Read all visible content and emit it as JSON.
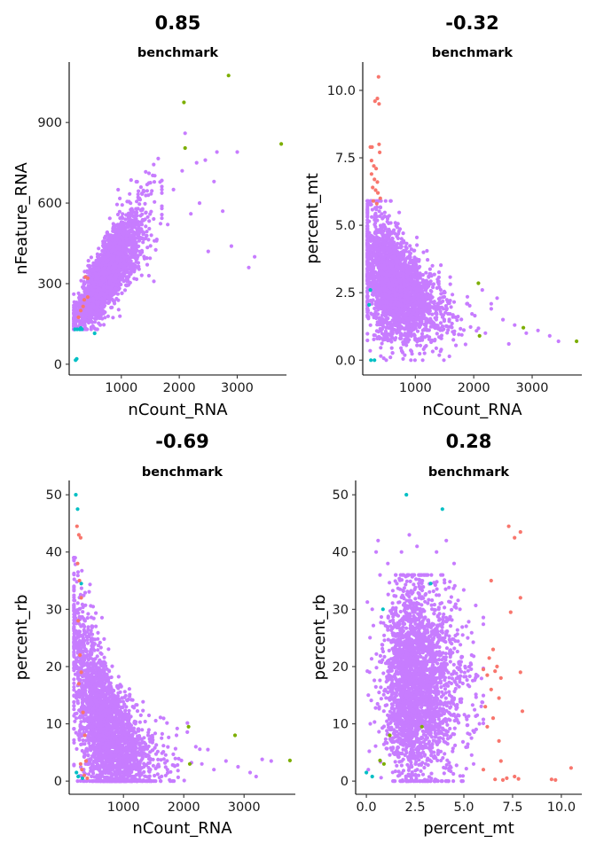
{
  "colors": {
    "main": "#C77CFF",
    "red": "#F8766D",
    "green": "#7CAE00",
    "cyan": "#00BFC4"
  },
  "chart_data": [
    {
      "type": "scatter",
      "title": "0.85",
      "subtitle": "benchmark",
      "xlabel": "nCount_RNA",
      "ylabel": "nFeature_RNA",
      "xlim": [
        100,
        3850
      ],
      "ylim": [
        -40,
        1125
      ],
      "xticks": [
        1000,
        2000,
        3000
      ],
      "yticks": [
        0,
        300,
        600,
        900
      ],
      "series": [
        {
          "color": "#7CAE00",
          "points": [
            [
              2080,
              975
            ],
            [
              2850,
              1075
            ],
            [
              2100,
              805
            ],
            [
              3760,
              820
            ]
          ]
        },
        {
          "color": "#00BFC4",
          "points": [
            [
              210,
              15
            ],
            [
              230,
              20
            ],
            [
              200,
              130
            ],
            [
              240,
              130
            ],
            [
              280,
              130
            ],
            [
              320,
              130
            ],
            [
              540,
              115
            ],
            [
              300,
              135
            ]
          ]
        },
        {
          "color": "#F8766D",
          "points": [
            [
              380,
              325
            ],
            [
              420,
              320
            ],
            [
              360,
              240
            ],
            [
              300,
              200
            ],
            [
              340,
              215
            ],
            [
              260,
              175
            ],
            [
              420,
              250
            ]
          ]
        },
        {
          "color": "#C77CFF",
          "cloud": {
            "model": "linear",
            "n": 2600,
            "xmin": 180,
            "xmax": 1700,
            "xcenter": 650,
            "xspread": 330,
            "intercept": 110,
            "slope": 0.3,
            "yspread": 55,
            "ymin": 130
          },
          "points": [
            [
              2100,
              860
            ],
            [
              2300,
              750
            ],
            [
              2650,
              790
            ],
            [
              3000,
              790
            ],
            [
              2600,
              680
            ],
            [
              2350,
              600
            ],
            [
              2750,
              570
            ],
            [
              2900,
              440
            ],
            [
              3300,
              400
            ],
            [
              3200,
              360
            ],
            [
              2500,
              420
            ],
            [
              2200,
              560
            ],
            [
              2050,
              720
            ],
            [
              1900,
              650
            ],
            [
              1800,
              520
            ],
            [
              2450,
              760
            ]
          ]
        }
      ]
    },
    {
      "type": "scatter",
      "title": "-0.32",
      "subtitle": "benchmark",
      "xlabel": "nCount_RNA",
      "ylabel": "percent_mt",
      "xlim": [
        100,
        3850
      ],
      "ylim": [
        -0.55,
        11.05
      ],
      "xticks": [
        1000,
        2000,
        3000
      ],
      "yticks": [
        0.0,
        2.5,
        5.0,
        7.5,
        10.0
      ],
      "ytick_labels": [
        "0.0",
        "2.5",
        "5.0",
        "7.5",
        "10.0"
      ],
      "series": [
        {
          "color": "#F8766D",
          "points": [
            [
              370,
              10.5
            ],
            [
              310,
              9.6
            ],
            [
              350,
              9.7
            ],
            [
              380,
              9.5
            ],
            [
              230,
              7.9
            ],
            [
              260,
              7.9
            ],
            [
              380,
              8.0
            ],
            [
              390,
              7.7
            ],
            [
              250,
              7.4
            ],
            [
              290,
              7.2
            ],
            [
              330,
              7.1
            ],
            [
              250,
              6.9
            ],
            [
              300,
              6.7
            ],
            [
              350,
              6.6
            ],
            [
              270,
              6.4
            ],
            [
              320,
              6.3
            ],
            [
              360,
              6.2
            ],
            [
              400,
              6.0
            ],
            [
              280,
              5.9
            ],
            [
              340,
              5.8
            ]
          ]
        },
        {
          "color": "#7CAE00",
          "points": [
            [
              2080,
              2.85
            ],
            [
              2850,
              1.2
            ],
            [
              3760,
              0.7
            ],
            [
              2100,
              0.9
            ]
          ]
        },
        {
          "color": "#00BFC4",
          "points": [
            [
              210,
              2.05
            ],
            [
              240,
              0.0
            ],
            [
              300,
              0.0
            ],
            [
              230,
              2.6
            ]
          ]
        },
        {
          "color": "#C77CFF",
          "cloud": {
            "model": "decay",
            "n": 2600,
            "xmin": 180,
            "xmax": 2300,
            "xcenter": 560,
            "xspread": 380,
            "amplitude": 2.6,
            "scale": 900,
            "floor": 1.2,
            "yspread": 0.85,
            "ymin": 0.0,
            "ymax": 5.9
          },
          "points": [
            [
              2300,
              1.9
            ],
            [
              2500,
              1.5
            ],
            [
              2700,
              1.3
            ],
            [
              2900,
              1.0
            ],
            [
              3100,
              1.1
            ],
            [
              3300,
              0.9
            ],
            [
              2400,
              2.3
            ],
            [
              2600,
              0.6
            ],
            [
              2200,
              1.0
            ],
            [
              3450,
              0.7
            ]
          ]
        }
      ]
    },
    {
      "type": "scatter",
      "title": "-0.69",
      "subtitle": "benchmark",
      "xlabel": "nCount_RNA",
      "ylabel": "percent_rb",
      "xlim": [
        100,
        3850
      ],
      "ylim": [
        -2.3,
        52.5
      ],
      "xticks": [
        1000,
        2000,
        3000
      ],
      "yticks": [
        0,
        10,
        20,
        30,
        40,
        50
      ],
      "series": [
        {
          "color": "#00BFC4",
          "points": [
            [
              210,
              50
            ],
            [
              240,
              47.5
            ],
            [
              300,
              34.5
            ],
            [
              220,
              1.5
            ],
            [
              250,
              0.8
            ],
            [
              320,
              0.5
            ]
          ]
        },
        {
          "color": "#F8766D",
          "points": [
            [
              230,
              44.5
            ],
            [
              260,
              43.0
            ],
            [
              290,
              42.5
            ],
            [
              240,
              38.0
            ],
            [
              270,
              35.0
            ],
            [
              300,
              32.0
            ],
            [
              250,
              28.0
            ],
            [
              280,
              22.0
            ],
            [
              260,
              17.0
            ],
            [
              300,
              19.0
            ],
            [
              330,
              12.0
            ],
            [
              360,
              8.0
            ],
            [
              290,
              3.0
            ],
            [
              310,
              2.0
            ],
            [
              350,
              1.0
            ],
            [
              400,
              0.5
            ],
            [
              380,
              3.5
            ]
          ]
        },
        {
          "color": "#7CAE00",
          "points": [
            [
              2080,
              9.5
            ],
            [
              2850,
              8.0
            ],
            [
              3760,
              3.6
            ],
            [
              2100,
              3.0
            ]
          ]
        },
        {
          "color": "#C77CFF",
          "cloud": {
            "model": "decay",
            "n": 2600,
            "xmin": 180,
            "xmax": 2400,
            "xcenter": 560,
            "xspread": 380,
            "amplitude": 22,
            "scale": 380,
            "floor": 3.5,
            "yspread": 6.5,
            "ymin": 0.0,
            "ymax": 39
          },
          "points": [
            [
              2300,
              3.0
            ],
            [
              2500,
              2.0
            ],
            [
              2700,
              3.5
            ],
            [
              2900,
              2.5
            ],
            [
              3100,
              1.5
            ],
            [
              3300,
              3.8
            ],
            [
              2400,
              5.5
            ],
            [
              2200,
              6.0
            ],
            [
              3450,
              3.5
            ],
            [
              3200,
              0.8
            ]
          ]
        }
      ]
    },
    {
      "type": "scatter",
      "title": "0.28",
      "subtitle": "benchmark",
      "xlabel": "percent_mt",
      "ylabel": "percent_rb",
      "xlim": [
        -0.55,
        11.05
      ],
      "ylim": [
        -2.3,
        52.5
      ],
      "xticks": [
        0.0,
        2.5,
        5.0,
        7.5,
        10.0
      ],
      "xtick_labels": [
        "0.0",
        "2.5",
        "5.0",
        "7.5",
        "10.0"
      ],
      "yticks": [
        0,
        10,
        20,
        30,
        40,
        50
      ],
      "series": [
        {
          "color": "#00BFC4",
          "points": [
            [
              2.05,
              50
            ],
            [
              3.9,
              47.5
            ],
            [
              0.85,
              30.0
            ],
            [
              3.3,
              34.5
            ],
            [
              0.0,
              1.5
            ],
            [
              0.3,
              0.8
            ]
          ]
        },
        {
          "color": "#7CAE00",
          "points": [
            [
              0.7,
              3.6
            ],
            [
              1.2,
              8.0
            ],
            [
              2.85,
              9.5
            ],
            [
              0.9,
              3.0
            ]
          ]
        },
        {
          "color": "#F8766D",
          "points": [
            [
              7.3,
              44.5
            ],
            [
              7.9,
              43.5
            ],
            [
              7.6,
              42.5
            ],
            [
              6.4,
              35.0
            ],
            [
              7.4,
              29.5
            ],
            [
              7.9,
              32.0
            ],
            [
              6.5,
              23.0
            ],
            [
              6.3,
              21.5
            ],
            [
              6.7,
              20.0
            ],
            [
              6.0,
              19.5
            ],
            [
              6.6,
              19.2
            ],
            [
              6.9,
              18.0
            ],
            [
              6.2,
              18.5
            ],
            [
              7.9,
              19.0
            ],
            [
              6.4,
              16.0
            ],
            [
              6.8,
              14.5
            ],
            [
              6.1,
              13.0
            ],
            [
              8.0,
              12.2
            ],
            [
              6.5,
              11.0
            ],
            [
              6.2,
              9.5
            ],
            [
              6.8,
              7.0
            ],
            [
              6.9,
              3.5
            ],
            [
              6.0,
              2.0
            ],
            [
              7.2,
              0.5
            ],
            [
              7.6,
              0.8
            ],
            [
              6.6,
              0.3
            ],
            [
              7.0,
              0.2
            ],
            [
              7.8,
              0.4
            ],
            [
              9.5,
              0.3
            ],
            [
              9.7,
              0.2
            ],
            [
              10.5,
              2.3
            ]
          ]
        },
        {
          "color": "#C77CFF",
          "cloud": {
            "model": "band",
            "n": 2600,
            "xmin": 0.05,
            "xmax": 6.0,
            "xcenter": 2.2,
            "xspread": 1.1,
            "ycenter": 17,
            "yspread": 8.5,
            "ymin": 0.0,
            "ymax": 36
          },
          "points": [
            [
              0.1,
              15
            ],
            [
              0.3,
              30
            ],
            [
              0.5,
              40
            ],
            [
              0.6,
              42
            ],
            [
              1.1,
              38
            ],
            [
              1.8,
              40
            ],
            [
              2.2,
              43
            ],
            [
              2.6,
              41
            ],
            [
              3.6,
              40
            ],
            [
              4.1,
              42
            ],
            [
              3.0,
              36
            ],
            [
              4.8,
              30
            ],
            [
              5.2,
              25
            ],
            [
              5.4,
              22
            ],
            [
              5.6,
              18
            ],
            [
              5.8,
              10
            ],
            [
              5.5,
              3
            ],
            [
              0.2,
              10
            ],
            [
              0.1,
              2
            ],
            [
              4.5,
              38
            ]
          ]
        }
      ]
    }
  ]
}
